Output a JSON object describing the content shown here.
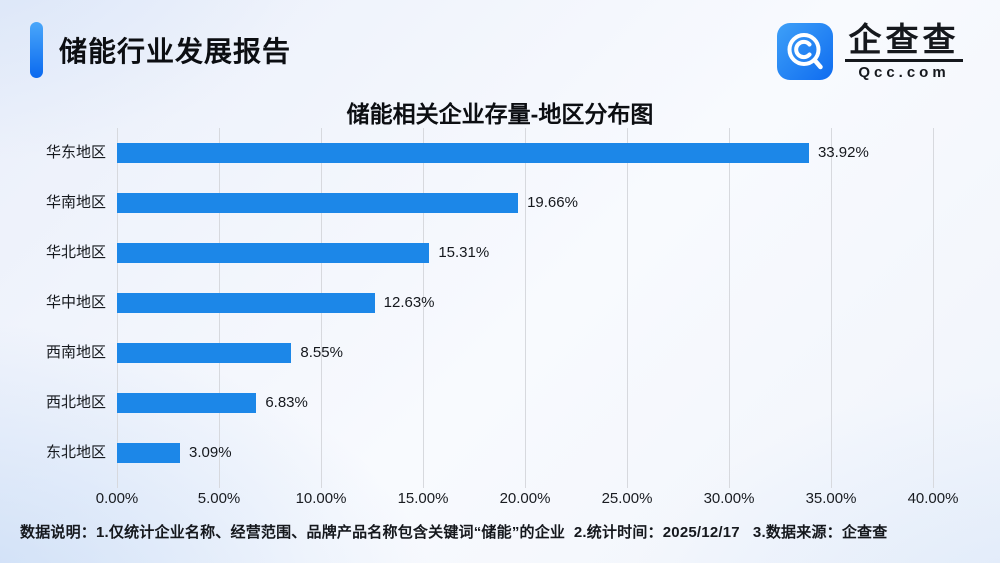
{
  "header": {
    "title": "储能行业发展报告",
    "accent_color": "#0a69ef"
  },
  "logo": {
    "brand": "企查查",
    "domain": "Qcc.com",
    "icon": "qcc-magnifier-icon",
    "icon_color_top": "#3ea0f8",
    "icon_color_bottom": "#0f6cf0"
  },
  "chart_data": {
    "type": "bar",
    "orientation": "horizontal",
    "title": "储能相关企业存量-地区分布图",
    "categories": [
      "华东地区",
      "华南地区",
      "华北地区",
      "华中地区",
      "西南地区",
      "西北地区",
      "东北地区"
    ],
    "values": [
      33.92,
      19.66,
      15.31,
      12.63,
      8.55,
      6.83,
      3.09
    ],
    "value_labels": [
      "33.92%",
      "19.66%",
      "15.31%",
      "12.63%",
      "8.55%",
      "6.83%",
      "3.09%"
    ],
    "x_ticks": [
      "0.00%",
      "5.00%",
      "10.00%",
      "15.00%",
      "20.00%",
      "25.00%",
      "30.00%",
      "35.00%",
      "40.00%"
    ],
    "x_tick_values": [
      0,
      5,
      10,
      15,
      20,
      25,
      30,
      35,
      40
    ],
    "xlim": [
      0,
      40
    ],
    "bar_color": "#1c87e8",
    "grid": true,
    "legend_position": "none",
    "xlabel": "",
    "ylabel": ""
  },
  "footer": {
    "note": "数据说明：1.仅统计企业名称、经营范围、品牌产品名称包含关键词“储能”的企业  2.统计时间：2025/12/17   3.数据来源：企查查"
  }
}
